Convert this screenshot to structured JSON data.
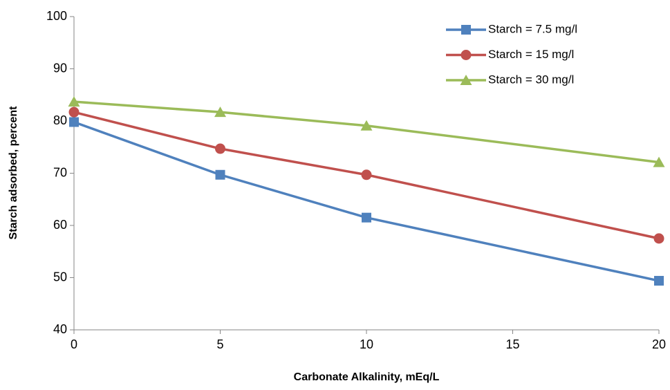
{
  "chart_data": {
    "type": "line",
    "x_label": "Carbonate Alkalinity, mEq/L",
    "y_label": "Starch adsorbed, percent",
    "x": [
      0,
      5,
      10,
      20
    ],
    "series": [
      {
        "name": "Starch = 7.5 mg/l",
        "color": "#4f81bd",
        "marker": "square",
        "values": [
          79.8,
          69.7,
          61.5,
          49.4
        ]
      },
      {
        "name": "Starch = 15 mg/l",
        "color": "#c0504d",
        "marker": "circle",
        "values": [
          81.7,
          74.7,
          69.7,
          57.5
        ]
      },
      {
        "name": "Starch = 30 mg/l",
        "color": "#9bbb59",
        "marker": "triangle",
        "values": [
          83.7,
          81.7,
          79.1,
          72.1
        ]
      }
    ],
    "xlim": [
      0,
      20
    ],
    "xticks": [
      0,
      5,
      10,
      15,
      20
    ],
    "ylim": [
      40,
      100
    ],
    "yticks": [
      40,
      50,
      60,
      70,
      80,
      90,
      100
    ],
    "grid": false,
    "legend": "upper right"
  }
}
